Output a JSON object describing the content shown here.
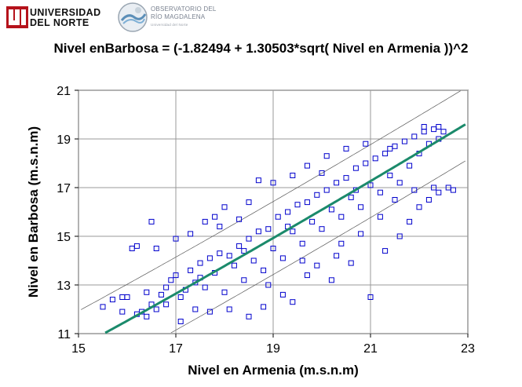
{
  "logos": {
    "university": {
      "line1": "UNIVERSIDAD",
      "line2": "DEL NORTE"
    },
    "observatory": {
      "line1": "OBSERVATORIO DEL",
      "line2": "RÍO MAGDALENA",
      "line3": "Universidad del Norte"
    }
  },
  "colors": {
    "points": "#0000cc",
    "fit_line": "#1b8a6b",
    "band_line": "#555555",
    "grid": "#999999"
  },
  "chart_data": {
    "type": "scatter",
    "title": "Nivel enBarbosa = (-1.82494 + 1.30503*sqrt( Nivel en Armenia ))^2",
    "xlabel": "Nivel en Armenia  (m.s.n.m)",
    "ylabel": "Nivel en  Barbosa (m.s.n.m)",
    "xlim": [
      15,
      23
    ],
    "ylim": [
      11,
      21
    ],
    "xticks": [
      15,
      17,
      19,
      21,
      23
    ],
    "yticks": [
      11,
      13,
      15,
      17,
      19,
      21
    ],
    "grid": true,
    "model": {
      "intercept": -1.82494,
      "slope": 1.30503,
      "form": "(a + b*sqrt(x))^2"
    },
    "prediction_band_offset": 1.5,
    "series": [
      {
        "name": "",
        "points": [
          [
            15.5,
            12.1
          ],
          [
            15.7,
            12.4
          ],
          [
            15.9,
            12.5
          ],
          [
            16.0,
            12.5
          ],
          [
            16.2,
            11.8
          ],
          [
            16.3,
            11.9
          ],
          [
            16.4,
            11.7
          ],
          [
            16.5,
            12.2
          ],
          [
            16.6,
            12.0
          ],
          [
            16.7,
            12.6
          ],
          [
            16.8,
            12.9
          ],
          [
            16.9,
            13.2
          ],
          [
            17.0,
            13.4
          ],
          [
            17.1,
            12.5
          ],
          [
            17.2,
            12.8
          ],
          [
            17.3,
            13.6
          ],
          [
            17.4,
            13.1
          ],
          [
            17.5,
            13.9
          ],
          [
            17.6,
            12.9
          ],
          [
            17.7,
            14.1
          ],
          [
            17.8,
            13.5
          ],
          [
            17.9,
            14.3
          ],
          [
            18.0,
            12.7
          ],
          [
            18.1,
            14.2
          ],
          [
            18.2,
            13.8
          ],
          [
            18.3,
            14.6
          ],
          [
            18.4,
            13.2
          ],
          [
            18.5,
            14.9
          ],
          [
            18.6,
            14.0
          ],
          [
            18.7,
            15.2
          ],
          [
            18.8,
            13.6
          ],
          [
            18.9,
            15.3
          ],
          [
            19.0,
            14.5
          ],
          [
            19.1,
            15.8
          ],
          [
            19.2,
            14.1
          ],
          [
            19.3,
            16.0
          ],
          [
            19.4,
            15.2
          ],
          [
            19.5,
            16.3
          ],
          [
            19.6,
            14.7
          ],
          [
            19.7,
            16.4
          ],
          [
            19.8,
            15.6
          ],
          [
            19.9,
            16.7
          ],
          [
            20.0,
            15.3
          ],
          [
            20.1,
            16.9
          ],
          [
            20.2,
            16.1
          ],
          [
            20.3,
            17.2
          ],
          [
            20.4,
            15.8
          ],
          [
            20.5,
            17.4
          ],
          [
            20.6,
            16.6
          ],
          [
            20.7,
            17.8
          ],
          [
            20.8,
            16.2
          ],
          [
            20.9,
            18.0
          ],
          [
            21.0,
            17.1
          ],
          [
            21.1,
            18.2
          ],
          [
            21.2,
            16.8
          ],
          [
            21.3,
            18.4
          ],
          [
            21.4,
            17.5
          ],
          [
            21.5,
            18.7
          ],
          [
            21.6,
            17.2
          ],
          [
            21.7,
            18.9
          ],
          [
            21.8,
            17.9
          ],
          [
            21.9,
            19.1
          ],
          [
            22.0,
            18.4
          ],
          [
            22.1,
            19.3
          ],
          [
            22.2,
            18.8
          ],
          [
            22.3,
            19.4
          ],
          [
            22.4,
            19.0
          ],
          [
            22.5,
            19.3
          ],
          [
            16.2,
            14.6
          ],
          [
            16.6,
            14.5
          ],
          [
            17.0,
            14.9
          ],
          [
            17.3,
            15.1
          ],
          [
            17.6,
            15.6
          ],
          [
            17.9,
            15.4
          ],
          [
            18.3,
            15.7
          ],
          [
            16.5,
            15.6
          ],
          [
            18.0,
            16.2
          ],
          [
            18.5,
            16.4
          ],
          [
            19.0,
            17.2
          ],
          [
            19.4,
            17.5
          ],
          [
            18.7,
            17.3
          ],
          [
            19.7,
            17.9
          ],
          [
            20.1,
            18.3
          ],
          [
            20.5,
            18.6
          ],
          [
            20.9,
            18.8
          ],
          [
            17.1,
            11.5
          ],
          [
            18.1,
            12.0
          ],
          [
            18.8,
            12.1
          ],
          [
            19.4,
            12.3
          ],
          [
            19.7,
            13.4
          ],
          [
            20.2,
            13.2
          ],
          [
            20.6,
            13.9
          ],
          [
            21.0,
            12.5
          ],
          [
            21.3,
            14.4
          ],
          [
            21.6,
            15.0
          ],
          [
            21.8,
            15.6
          ],
          [
            22.0,
            16.2
          ],
          [
            22.2,
            16.5
          ],
          [
            22.4,
            16.8
          ],
          [
            22.6,
            17.0
          ],
          [
            22.7,
            16.9
          ],
          [
            21.2,
            15.8
          ],
          [
            20.8,
            15.1
          ],
          [
            20.4,
            14.7
          ],
          [
            19.9,
            13.8
          ],
          [
            19.2,
            12.6
          ],
          [
            18.5,
            11.7
          ],
          [
            17.7,
            11.9
          ],
          [
            16.8,
            12.2
          ],
          [
            17.4,
            12.0
          ],
          [
            18.9,
            13.0
          ],
          [
            19.6,
            14.0
          ],
          [
            20.3,
            14.2
          ],
          [
            21.5,
            16.5
          ],
          [
            21.9,
            16.9
          ],
          [
            22.3,
            17.0
          ],
          [
            16.1,
            14.5
          ],
          [
            17.8,
            15.8
          ],
          [
            20.0,
            17.6
          ],
          [
            21.4,
            18.6
          ],
          [
            22.1,
            19.5
          ],
          [
            22.4,
            19.5
          ],
          [
            20.7,
            16.9
          ],
          [
            19.3,
            15.4
          ],
          [
            18.4,
            14.4
          ],
          [
            17.5,
            13.3
          ],
          [
            16.4,
            12.7
          ],
          [
            15.9,
            11.9
          ]
        ]
      }
    ]
  }
}
